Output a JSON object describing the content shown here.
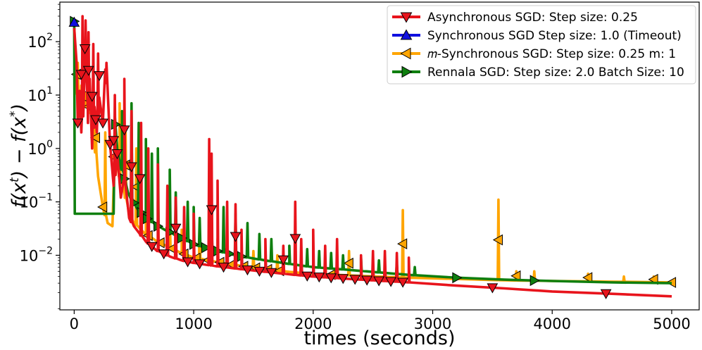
{
  "chart_data": {
    "type": "line",
    "title": "",
    "xlabel": "times (seconds)",
    "ylabel": "f(x^t) − f(x^*)",
    "yscale": "log",
    "xlim": [
      -120,
      5230
    ],
    "ylim": [
      0.00095,
      550
    ],
    "x_ticks": [
      0,
      1000,
      2000,
      3000,
      4000,
      5000
    ],
    "x_tick_labels": [
      "0",
      "1000",
      "2000",
      "3000",
      "4000",
      "5000"
    ],
    "y_ticks": [
      0.01,
      0.1,
      1,
      10,
      100
    ],
    "y_tick_labels": [
      {
        "base": "10",
        "exp": "−2"
      },
      {
        "base": "10",
        "exp": "−1"
      },
      {
        "base": "10",
        "exp": "0"
      },
      {
        "base": "10",
        "exp": "1"
      },
      {
        "base": "10",
        "exp": "2"
      }
    ],
    "legend_position": "top-right",
    "series": [
      {
        "name": "Asynchronous SGD: Step size: 0.25",
        "color": "#e8141c",
        "marker": "triangle-down",
        "points": [
          [
            0,
            180
          ],
          [
            20,
            40
          ],
          [
            30,
            3
          ],
          [
            45,
            12
          ],
          [
            60,
            2
          ],
          [
            80,
            8
          ],
          [
            100,
            60
          ],
          [
            115,
            3
          ],
          [
            130,
            20
          ],
          [
            150,
            1
          ],
          [
            170,
            6
          ],
          [
            190,
            2
          ],
          [
            210,
            9
          ],
          [
            240,
            3
          ],
          [
            270,
            40
          ],
          [
            300,
            1.2
          ],
          [
            330,
            0.2
          ],
          [
            360,
            0.8
          ],
          [
            390,
            0.12
          ],
          [
            420,
            0.25
          ],
          [
            460,
            0.05
          ],
          [
            500,
            0.035
          ],
          [
            550,
            0.025
          ],
          [
            600,
            0.018
          ],
          [
            700,
            0.012
          ],
          [
            800,
            0.0095
          ],
          [
            900,
            0.008
          ],
          [
            1000,
            0.0072
          ],
          [
            1200,
            0.0062
          ],
          [
            1400,
            0.0055
          ],
          [
            1600,
            0.0049
          ],
          [
            1800,
            0.0044
          ],
          [
            2000,
            0.004
          ],
          [
            2400,
            0.0035
          ],
          [
            2800,
            0.0031
          ],
          [
            3200,
            0.0027
          ],
          [
            3600,
            0.0024
          ],
          [
            4000,
            0.0021
          ],
          [
            4500,
            0.0019
          ],
          [
            5000,
            0.0017
          ]
        ],
        "spikes": [
          [
            70,
            300
          ],
          [
            95,
            250
          ],
          [
            120,
            150
          ],
          [
            160,
            90
          ],
          [
            200,
            60
          ],
          [
            260,
            30
          ],
          [
            340,
            10
          ],
          [
            420,
            20
          ],
          [
            480,
            5
          ],
          [
            560,
            3
          ],
          [
            620,
            1
          ],
          [
            700,
            0.5
          ],
          [
            780,
            0.2
          ],
          [
            850,
            0.12
          ],
          [
            920,
            0.08
          ],
          [
            1000,
            0.06
          ],
          [
            1130,
            1.5
          ],
          [
            1150,
            0.8
          ],
          [
            1200,
            0.25
          ],
          [
            1280,
            0.1
          ],
          [
            1350,
            0.09
          ],
          [
            1400,
            0.03
          ],
          [
            1600,
            0.02
          ],
          [
            1750,
            0.015
          ],
          [
            1850,
            0.1
          ],
          [
            1900,
            0.02
          ],
          [
            2000,
            0.03
          ],
          [
            2100,
            0.015
          ],
          [
            2200,
            0.02
          ],
          [
            2400,
            0.01
          ],
          [
            2500,
            0.012
          ],
          [
            2600,
            0.012
          ],
          [
            2700,
            0.011
          ],
          [
            2800,
            0.009
          ]
        ],
        "markers_x": [
          30,
          60,
          90,
          120,
          150,
          180,
          210,
          240,
          300,
          330,
          360,
          420,
          480,
          550,
          650,
          750,
          850,
          950,
          1050,
          1150,
          1250,
          1350,
          1450,
          1550,
          1650,
          1750,
          1850,
          1950,
          2050,
          2150,
          2250,
          2350,
          2450,
          2550,
          2650,
          2750,
          3500,
          4450
        ]
      },
      {
        "name": "Synchronous SGD Step size: 1.0 (Timeout)",
        "color": "#1010e0",
        "marker": "triangle-up",
        "points": [
          [
            0,
            230
          ],
          [
            10,
            230
          ]
        ],
        "spikes": [],
        "markers_x": [
          0
        ]
      },
      {
        "name": "𝑚-Synchronous  SGD: Step size: 0.25 m: 1",
        "color": "#ffa500",
        "marker": "triangle-left",
        "points": [
          [
            0,
            200
          ],
          [
            20,
            15
          ],
          [
            50,
            5
          ],
          [
            100,
            8
          ],
          [
            150,
            4
          ],
          [
            200,
            0.3
          ],
          [
            240,
            0.08
          ],
          [
            280,
            0.04
          ],
          [
            320,
            0.035
          ],
          [
            350,
            1.5
          ],
          [
            380,
            0.3
          ],
          [
            420,
            0.15
          ],
          [
            460,
            0.06
          ],
          [
            500,
            0.04
          ],
          [
            600,
            0.025
          ],
          [
            700,
            0.018
          ],
          [
            800,
            0.014
          ],
          [
            900,
            0.011
          ],
          [
            1000,
            0.009
          ],
          [
            1200,
            0.0075
          ],
          [
            1400,
            0.0063
          ],
          [
            1600,
            0.0055
          ],
          [
            1800,
            0.0049
          ],
          [
            2000,
            0.0045
          ],
          [
            2400,
            0.0041
          ],
          [
            2800,
            0.0038
          ],
          [
            3200,
            0.0036
          ],
          [
            3600,
            0.0034
          ],
          [
            4000,
            0.0033
          ],
          [
            4500,
            0.0032
          ],
          [
            5000,
            0.0031
          ]
        ],
        "spikes": [
          [
            30,
            40
          ],
          [
            60,
            15
          ],
          [
            90,
            6
          ],
          [
            140,
            9
          ],
          [
            180,
            3
          ],
          [
            260,
            2
          ],
          [
            340,
            4
          ],
          [
            380,
            7
          ],
          [
            430,
            2
          ],
          [
            520,
            1
          ],
          [
            600,
            0.3
          ],
          [
            700,
            0.1
          ],
          [
            800,
            0.05
          ],
          [
            900,
            0.03
          ],
          [
            1050,
            0.03
          ],
          [
            1200,
            0.02
          ],
          [
            1350,
            0.015
          ],
          [
            1500,
            0.012
          ],
          [
            1700,
            0.01
          ],
          [
            1900,
            0.009
          ],
          [
            2100,
            0.008
          ],
          [
            2300,
            0.012
          ],
          [
            2750,
            0.07
          ],
          [
            3550,
            0.11
          ],
          [
            3700,
            0.005
          ],
          [
            3850,
            0.005
          ],
          [
            4300,
            0.0045
          ],
          [
            4600,
            0.004
          ],
          [
            4850,
            0.004
          ]
        ],
        "markers_x": [
          20,
          70,
          120,
          180,
          240,
          330,
          430,
          520,
          620,
          720,
          820,
          920,
          1020,
          1120,
          1220,
          1320,
          1420,
          1520,
          1620,
          1720,
          2150,
          2300,
          2750,
          3550,
          3700,
          4300,
          4850,
          5000
        ]
      },
      {
        "name": "Rennala SGD: Step size: 2.0 Batch Size: 10",
        "color": "#0f7f0f",
        "marker": "triangle-right",
        "points": [
          [
            0,
            240
          ],
          [
            5,
            0.06
          ],
          [
            200,
            0.06
          ],
          [
            330,
            0.06
          ],
          [
            340,
            4
          ],
          [
            360,
            1
          ],
          [
            400,
            0.4
          ],
          [
            450,
            0.15
          ],
          [
            520,
            0.08
          ],
          [
            600,
            0.05
          ],
          [
            700,
            0.035
          ],
          [
            800,
            0.027
          ],
          [
            900,
            0.021
          ],
          [
            1000,
            0.016
          ],
          [
            1200,
            0.012
          ],
          [
            1400,
            0.0095
          ],
          [
            1600,
            0.008
          ],
          [
            1800,
            0.0069
          ],
          [
            2000,
            0.006
          ],
          [
            2400,
            0.0051
          ],
          [
            2800,
            0.0043
          ],
          [
            3200,
            0.0038
          ],
          [
            3600,
            0.0035
          ],
          [
            4000,
            0.0033
          ],
          [
            4500,
            0.0031
          ],
          [
            5000,
            0.003
          ]
        ],
        "spikes": [
          [
            400,
            5
          ],
          [
            480,
            7
          ],
          [
            540,
            3
          ],
          [
            600,
            1.5
          ],
          [
            650,
            0.8
          ],
          [
            700,
            1
          ],
          [
            800,
            0.4
          ],
          [
            850,
            0.15
          ],
          [
            950,
            0.1
          ],
          [
            1000,
            0.08
          ],
          [
            1050,
            0.05
          ],
          [
            1150,
            0.04
          ],
          [
            1250,
            0.08
          ],
          [
            1350,
            0.06
          ],
          [
            1450,
            0.04
          ],
          [
            1550,
            0.025
          ],
          [
            1650,
            0.02
          ],
          [
            1800,
            0.015
          ],
          [
            1950,
            0.013
          ],
          [
            2050,
            0.012
          ],
          [
            2150,
            0.011
          ],
          [
            2250,
            0.01
          ],
          [
            2400,
            0.009
          ],
          [
            2550,
            0.008
          ],
          [
            2700,
            0.007
          ],
          [
            2850,
            0.006
          ]
        ],
        "markers_x": [
          0,
          345,
          420,
          500,
          560,
          610,
          700,
          800,
          900,
          1000,
          1100,
          1200,
          1300,
          1400,
          3200,
          3850
        ]
      }
    ]
  },
  "colors": {
    "async": "#e8141c",
    "sync": "#1010e0",
    "msync": "#ffa500",
    "rennala": "#0f7f0f"
  }
}
